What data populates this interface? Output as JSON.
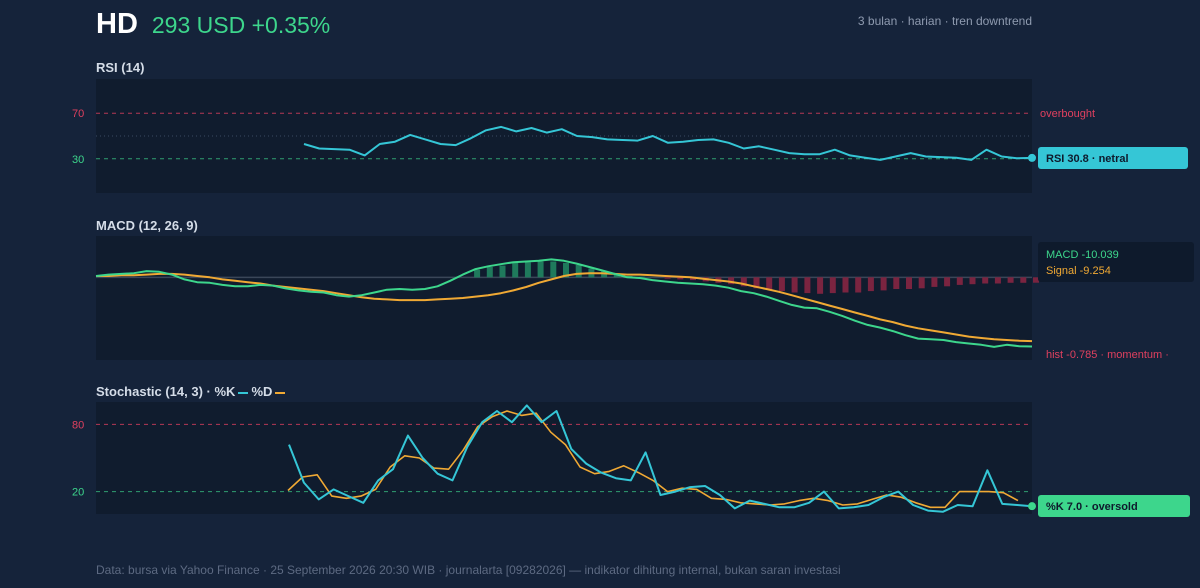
{
  "header": {
    "ticker": "HD",
    "price_change": "293 USD +0.35%",
    "meta": "3 bulan · harian · tren downtrend"
  },
  "footer": "Data: bursa via Yahoo Finance · 25 September 2026 20:30 WIB · journalarta [09282026] — indikator dihitung internal, bukan saran investasi",
  "colors": {
    "background": "#15233a",
    "panel": "#101c2e",
    "rsi_line": "#35c6d6",
    "macd_line": "#3dd68c",
    "signal_line": "#f0a934",
    "hist_pos": "#1f7a5c",
    "hist_neg": "#7a2440",
    "overbought": "#e0405f",
    "oversold": "#3dd68c"
  },
  "chart_data": [
    {
      "type": "line",
      "title": "RSI (14)",
      "ylim": [
        0,
        100
      ],
      "yticks": [
        70,
        30
      ],
      "levels": {
        "overbought": 70,
        "mid": 50,
        "oversold": 30
      },
      "level_label": "overbought",
      "series": [
        {
          "values": [
            43,
            39,
            38.5,
            38,
            33,
            43,
            45,
            51,
            47,
            43,
            42,
            48,
            55,
            58,
            54,
            57,
            53,
            56,
            50,
            49,
            47,
            46.5,
            46,
            50,
            44,
            45,
            46.5,
            47,
            44,
            39,
            41,
            38,
            35,
            34,
            34,
            38,
            33,
            31,
            29,
            32,
            35,
            32,
            31.5,
            31,
            29,
            38,
            32,
            30.5,
            30.8
          ]
        }
      ],
      "badge": "RSI 30.8 · netral"
    },
    {
      "type": "line",
      "title": "MACD (12, 26, 9)",
      "ylim": [
        -12,
        6
      ],
      "macd": [
        0.2,
        0.4,
        0.5,
        0.6,
        0.9,
        0.8,
        0.4,
        -0.3,
        -0.7,
        -0.8,
        -1.1,
        -1.3,
        -1.3,
        -1.1,
        -1.2,
        -1.6,
        -1.9,
        -2.1,
        -2.2,
        -2.6,
        -2.8,
        -2.6,
        -2.2,
        -1.8,
        -1.7,
        -1.8,
        -1.7,
        -1.3,
        -0.5,
        0.4,
        1.2,
        1.6,
        1.9,
        2.2,
        2.3,
        2.4,
        2.6,
        2.4,
        2.0,
        1.5,
        1.0,
        0.5,
        0.0,
        -0.1,
        -0.4,
        -0.6,
        -0.8,
        -0.9,
        -1.0,
        -1.2,
        -1.5,
        -2.0,
        -2.3,
        -2.8,
        -3.4,
        -4.0,
        -4.4,
        -4.5,
        -5.0,
        -5.6,
        -6.3,
        -6.9,
        -7.3,
        -7.8,
        -8.4,
        -8.9,
        -9.0,
        -9.1,
        -9.4,
        -9.6,
        -9.8,
        -10.1,
        -9.8,
        -10.0,
        -10.039
      ],
      "signal": [
        0.2,
        0.2,
        0.3,
        0.3,
        0.4,
        0.5,
        0.5,
        0.4,
        0.2,
        0.0,
        -0.3,
        -0.5,
        -0.7,
        -0.9,
        -1.2,
        -1.4,
        -1.6,
        -1.8,
        -2.0,
        -2.3,
        -2.6,
        -2.9,
        -3.1,
        -3.2,
        -3.3,
        -3.3,
        -3.3,
        -3.2,
        -3.1,
        -3.0,
        -2.8,
        -2.6,
        -2.3,
        -1.9,
        -1.4,
        -0.8,
        -0.3,
        0.2,
        0.5,
        0.6,
        0.6,
        0.5,
        0.4,
        0.4,
        0.3,
        0.2,
        0.1,
        0.0,
        -0.2,
        -0.4,
        -0.6,
        -0.9,
        -1.3,
        -1.7,
        -2.1,
        -2.6,
        -3.1,
        -3.6,
        -4.1,
        -4.6,
        -5.1,
        -5.6,
        -6.1,
        -6.5,
        -7.0,
        -7.4,
        -7.7,
        -8.0,
        -8.3,
        -8.6,
        -8.8,
        -9.0,
        -9.1,
        -9.2,
        -9.254
      ],
      "histogram": [
        0,
        0,
        0,
        0,
        0,
        0,
        0,
        0,
        0,
        0,
        0,
        0,
        0,
        0,
        0,
        0,
        0,
        0,
        0,
        0,
        0,
        0,
        0,
        0,
        0,
        0,
        0,
        0,
        0,
        0,
        1.1,
        1.5,
        1.7,
        2.1,
        2.2,
        2.3,
        2.3,
        2.1,
        1.8,
        1.3,
        0.9,
        0.5,
        0.2,
        0.1,
        0.0,
        -0.2,
        -0.3,
        -0.4,
        -0.6,
        -0.8,
        -1.0,
        -1.3,
        -1.6,
        -1.8,
        -2.0,
        -2.2,
        -2.3,
        -2.4,
        -2.3,
        -2.2,
        -2.2,
        -2.0,
        -1.9,
        -1.7,
        -1.7,
        -1.6,
        -1.4,
        -1.3,
        -1.1,
        -1.0,
        -0.9,
        -0.9,
        -0.8,
        -0.8,
        -0.785
      ],
      "labels": {
        "macd": "MACD -10.039",
        "signal": "Signal -9.254",
        "hist": "hist -0.785 · momentum ·"
      }
    },
    {
      "type": "line",
      "title": "Stochastic (14, 3) · %K",
      "legend": [
        "%K",
        "%D"
      ],
      "ylim": [
        0,
        100
      ],
      "yticks": [
        80,
        20
      ],
      "levels": {
        "overbought": 80,
        "oversold": 20
      },
      "k": [
        62,
        28,
        13,
        22,
        16,
        10,
        30,
        40,
        70,
        50,
        36,
        30,
        60,
        82,
        92,
        82,
        97,
        82,
        92,
        58,
        45,
        37,
        32,
        30,
        55,
        17,
        20,
        24,
        25,
        17,
        5,
        12,
        9,
        6,
        6,
        10,
        20,
        5,
        6,
        8,
        15,
        20,
        8,
        3,
        2,
        8,
        7,
        39,
        9,
        8,
        7.0
      ],
      "d": [
        21,
        33,
        35,
        16,
        14,
        16,
        22,
        42,
        52,
        50,
        41,
        40,
        57,
        78,
        87,
        92,
        88,
        90,
        73,
        62,
        42,
        36,
        38,
        43,
        37,
        30,
        20,
        23,
        22,
        14,
        13,
        10,
        9,
        8,
        9,
        12,
        14,
        12,
        8,
        9,
        13,
        17,
        15,
        10,
        6,
        6,
        20,
        20,
        20,
        19,
        12
      ],
      "badge": "%K 7.0 · oversold"
    }
  ]
}
